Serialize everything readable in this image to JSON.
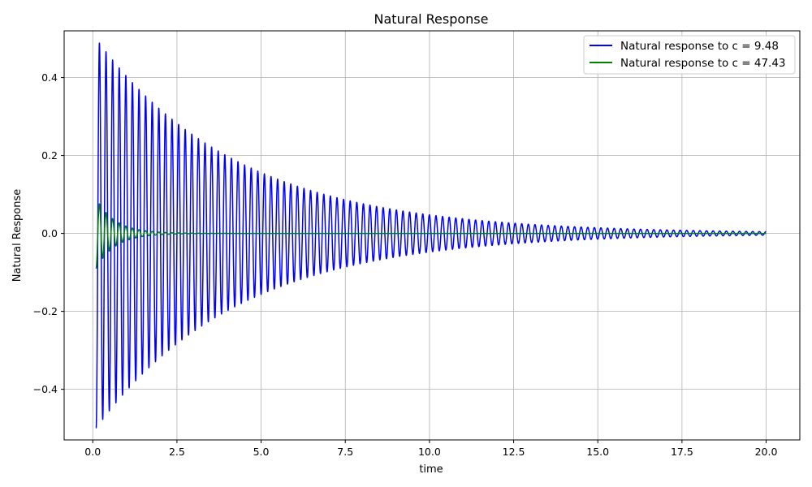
{
  "chart_data": {
    "type": "line",
    "title": "Natural Response",
    "xlabel": "time",
    "ylabel": "Natural Response",
    "xlim": [
      -0.85,
      21.0
    ],
    "ylim": [
      -0.53,
      0.52
    ],
    "xticks": [
      0.0,
      2.5,
      5.0,
      7.5,
      10.0,
      12.5,
      15.0,
      17.5,
      20.0
    ],
    "xtick_labels": [
      "0.0",
      "2.5",
      "5.0",
      "7.5",
      "10.0",
      "12.5",
      "15.0",
      "17.5",
      "20.0"
    ],
    "yticks": [
      -0.4,
      -0.2,
      0.0,
      0.2,
      0.4
    ],
    "ytick_labels": [
      "−0.4",
      "−0.2",
      "0.0",
      "0.2",
      "0.4"
    ],
    "grid": true,
    "legend_position": "top-right",
    "series": [
      {
        "name": "Natural response to c = 9.48",
        "color": "#0000ff",
        "model": {
          "amplitude": 0.5,
          "decay_rate": 0.237,
          "period": 0.196,
          "phase_deg": 180,
          "t_start": 0.1,
          "t_end": 20.0
        },
        "x": [
          0.1,
          0.2,
          0.3,
          0.4,
          0.5,
          0.6,
          0.8,
          1.0,
          1.2,
          1.4,
          1.6,
          1.8,
          2.0,
          2.2,
          2.4,
          2.6,
          2.8,
          3.0,
          3.5,
          4.0,
          4.5,
          5.0,
          6.0,
          7.0,
          8.0,
          9.0,
          10.0,
          12.0,
          14.0,
          16.0,
          18.0,
          20.0
        ],
        "y": [
          -0.485,
          0.47,
          -0.455,
          0.442,
          -0.43,
          0.416,
          0.39,
          0.366,
          0.343,
          0.321,
          0.302,
          0.282,
          0.265,
          0.25,
          0.235,
          0.22,
          0.207,
          0.194,
          0.165,
          0.142,
          0.122,
          0.104,
          0.076,
          0.056,
          0.041,
          0.03,
          0.021,
          0.012,
          0.007,
          0.004,
          0.002,
          0.001
        ]
      },
      {
        "name": "Natural response to c = 47.43",
        "color": "#008000",
        "model": {
          "amplitude": 0.09,
          "decay_rate": 1.75,
          "period": 0.196,
          "phase_deg": 180,
          "t_start": 0.1,
          "t_end": 20.0
        },
        "x": [
          0.1,
          0.2,
          0.3,
          0.4,
          0.5,
          0.6,
          0.8,
          1.0,
          1.5,
          2.0,
          3.0,
          5.0,
          10.0,
          20.0
        ],
        "y": [
          -0.09,
          0.075,
          -0.065,
          0.055,
          -0.048,
          0.04,
          0.03,
          0.02,
          0.009,
          0.003,
          0.0,
          0.0,
          0.0,
          0.0
        ]
      }
    ]
  }
}
